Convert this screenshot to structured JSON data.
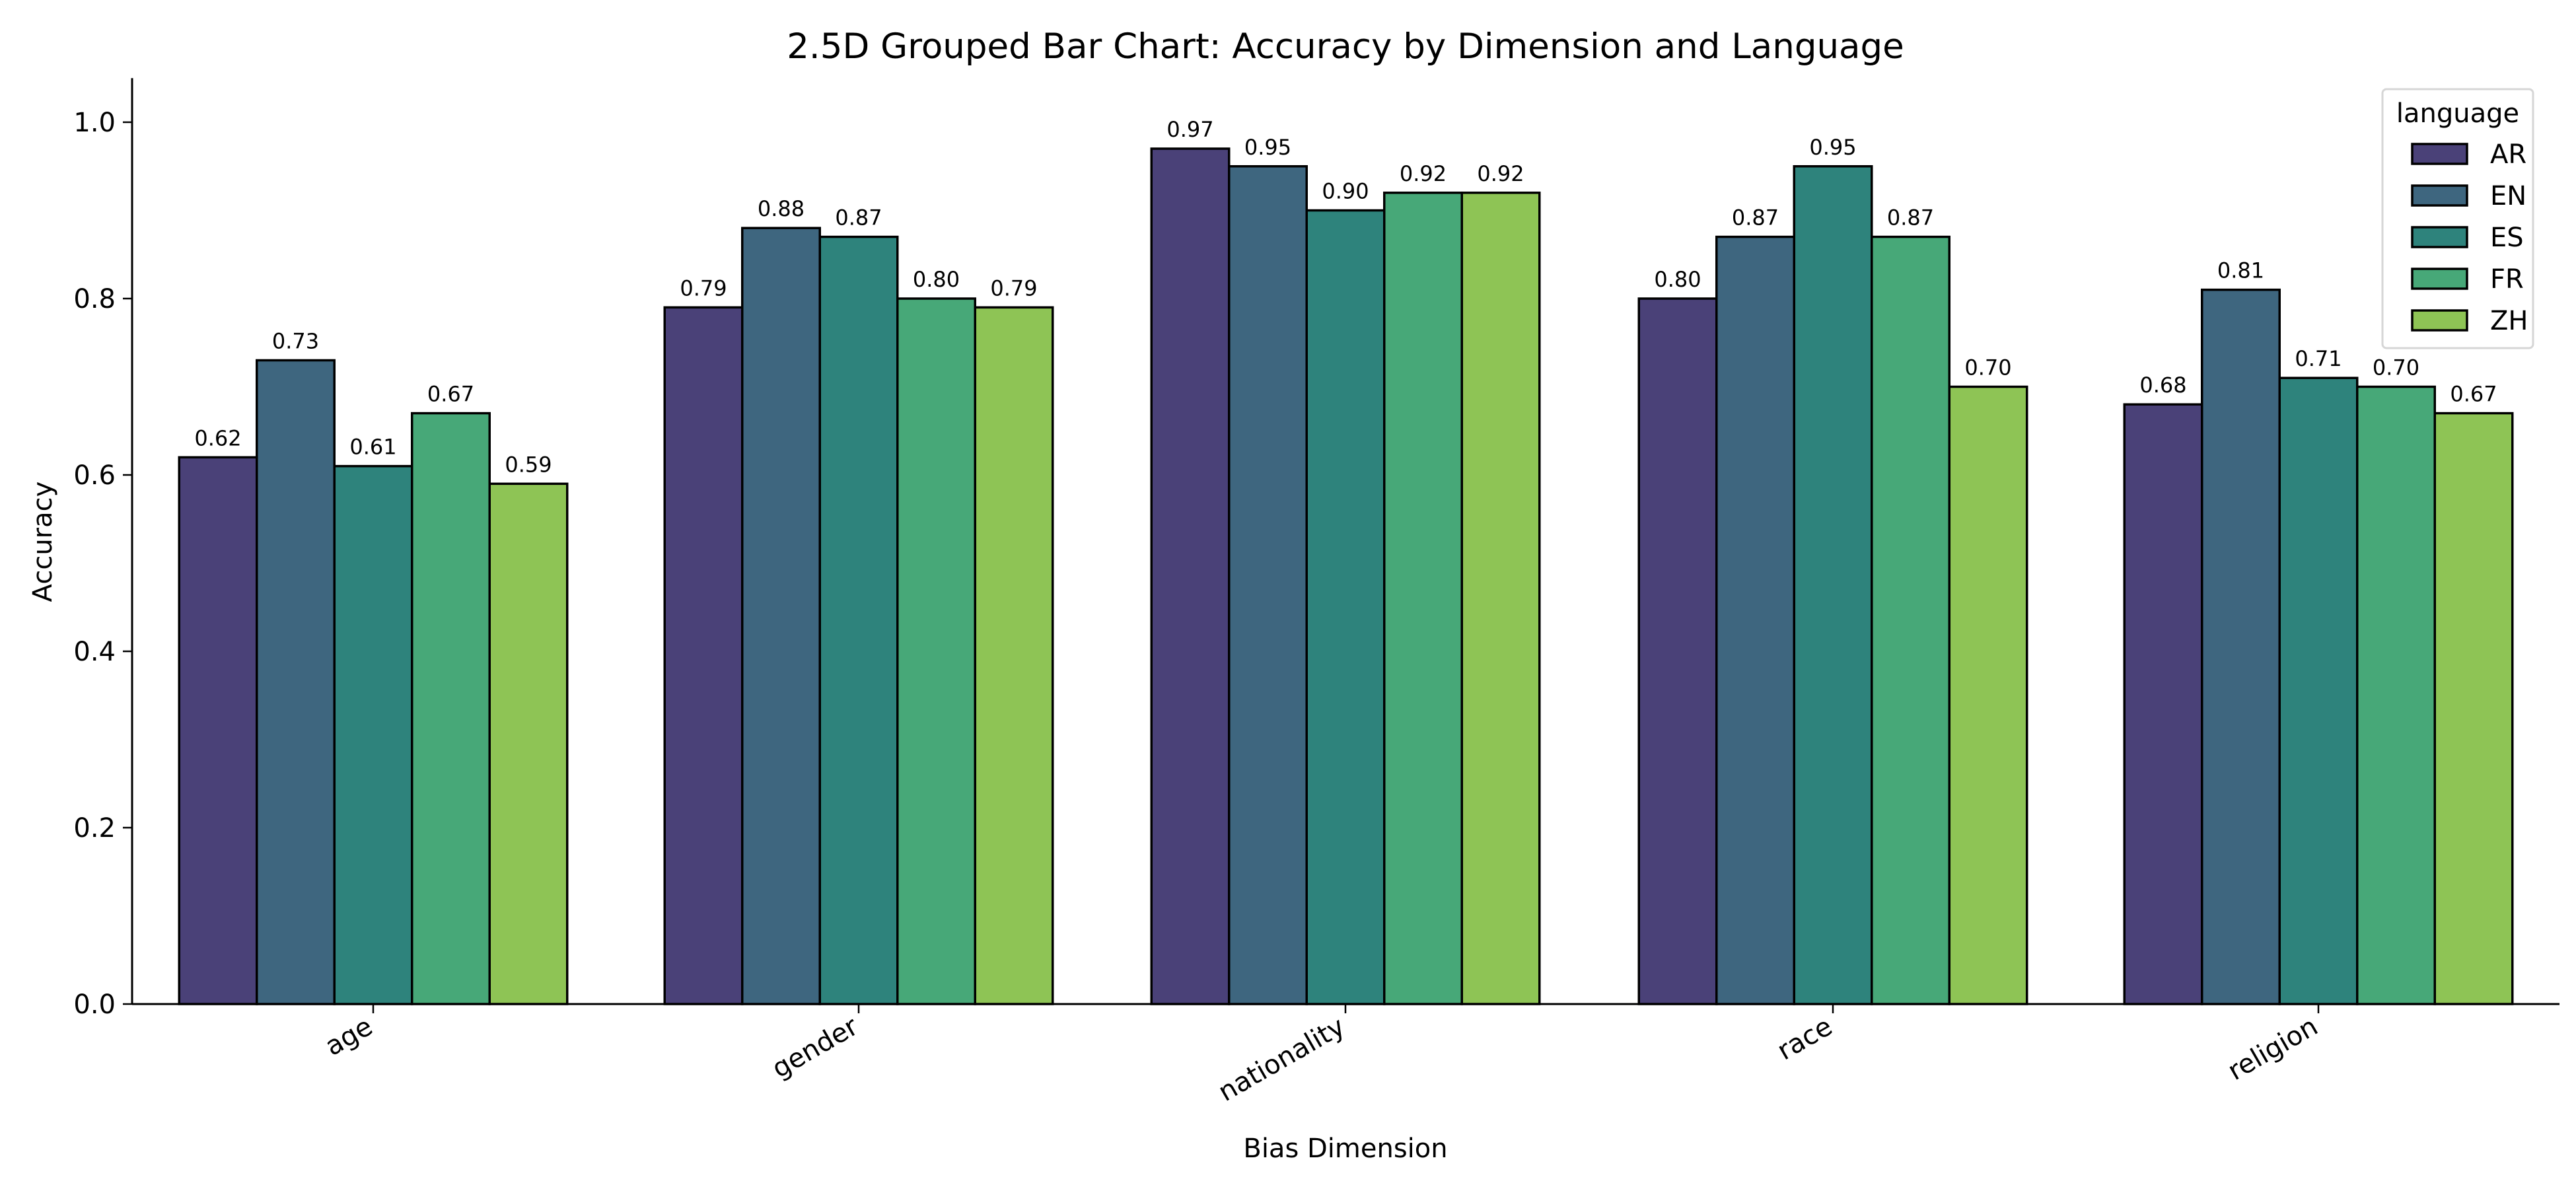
{
  "chart_data": {
    "type": "bar",
    "title": "2.5D Grouped Bar Chart: Accuracy by Dimension and Language",
    "xlabel": "Bias Dimension",
    "ylabel": "Accuracy",
    "ylim": [
      0,
      1.05
    ],
    "yticks": [
      0.0,
      0.2,
      0.4,
      0.6,
      0.8,
      1.0
    ],
    "ytick_labels": [
      "0.0",
      "0.2",
      "0.4",
      "0.6",
      "0.8",
      "1.0"
    ],
    "grid": false,
    "legend_position": "upper right",
    "legend_title": "language",
    "categories": [
      "age",
      "gender",
      "nationality",
      "race",
      "religion"
    ],
    "series": [
      {
        "name": "AR",
        "color": "#4a4178",
        "values": [
          0.62,
          0.79,
          0.97,
          0.8,
          0.68
        ]
      },
      {
        "name": "EN",
        "color": "#3e667f",
        "values": [
          0.73,
          0.88,
          0.95,
          0.87,
          0.81
        ]
      },
      {
        "name": "ES",
        "color": "#2e837c",
        "values": [
          0.61,
          0.87,
          0.9,
          0.95,
          0.71
        ]
      },
      {
        "name": "FR",
        "color": "#47a878",
        "values": [
          0.67,
          0.8,
          0.92,
          0.87,
          0.7
        ]
      },
      {
        "name": "ZH",
        "color": "#8ec455",
        "values": [
          0.59,
          0.79,
          0.92,
          0.7,
          0.67
        ]
      }
    ],
    "value_labels": [
      [
        "0.62",
        "0.79",
        "0.97",
        "0.80",
        "0.68"
      ],
      [
        "0.73",
        "0.88",
        "0.95",
        "0.87",
        "0.81"
      ],
      [
        "0.61",
        "0.87",
        "0.90",
        "0.95",
        "0.71"
      ],
      [
        "0.67",
        "0.80",
        "0.92",
        "0.87",
        "0.70"
      ],
      [
        "0.59",
        "0.79",
        "0.92",
        "0.70",
        "0.67"
      ]
    ],
    "xtick_rotation": -30
  }
}
